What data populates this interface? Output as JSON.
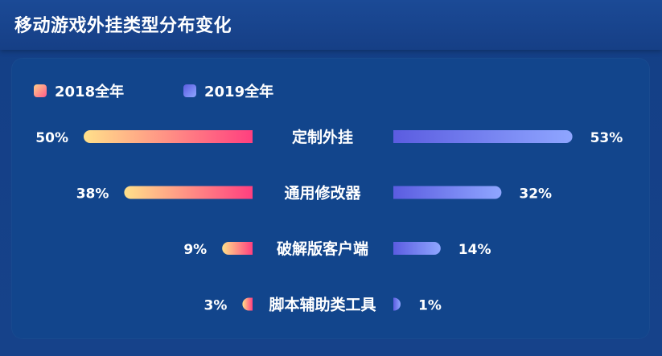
{
  "page": {
    "title": "移动游戏外挂类型分布变化"
  },
  "chart_data": {
    "type": "bar",
    "title": "移动游戏外挂类型分布变化",
    "categories": [
      "定制外挂",
      "通用修改器",
      "破解版客户端",
      "脚本辅助类工具"
    ],
    "series": [
      {
        "name": "2018全年",
        "values": [
          50,
          38,
          9,
          3
        ],
        "color_start": "#ffe08a",
        "color_end": "#ff3f7f"
      },
      {
        "name": "2019全年",
        "values": [
          53,
          32,
          14,
          1
        ],
        "color_start": "#5b5ce0",
        "color_end": "#8fa6ff"
      }
    ],
    "value_suffix": "%",
    "layout": "butterfly",
    "legend_position": "top-left"
  }
}
